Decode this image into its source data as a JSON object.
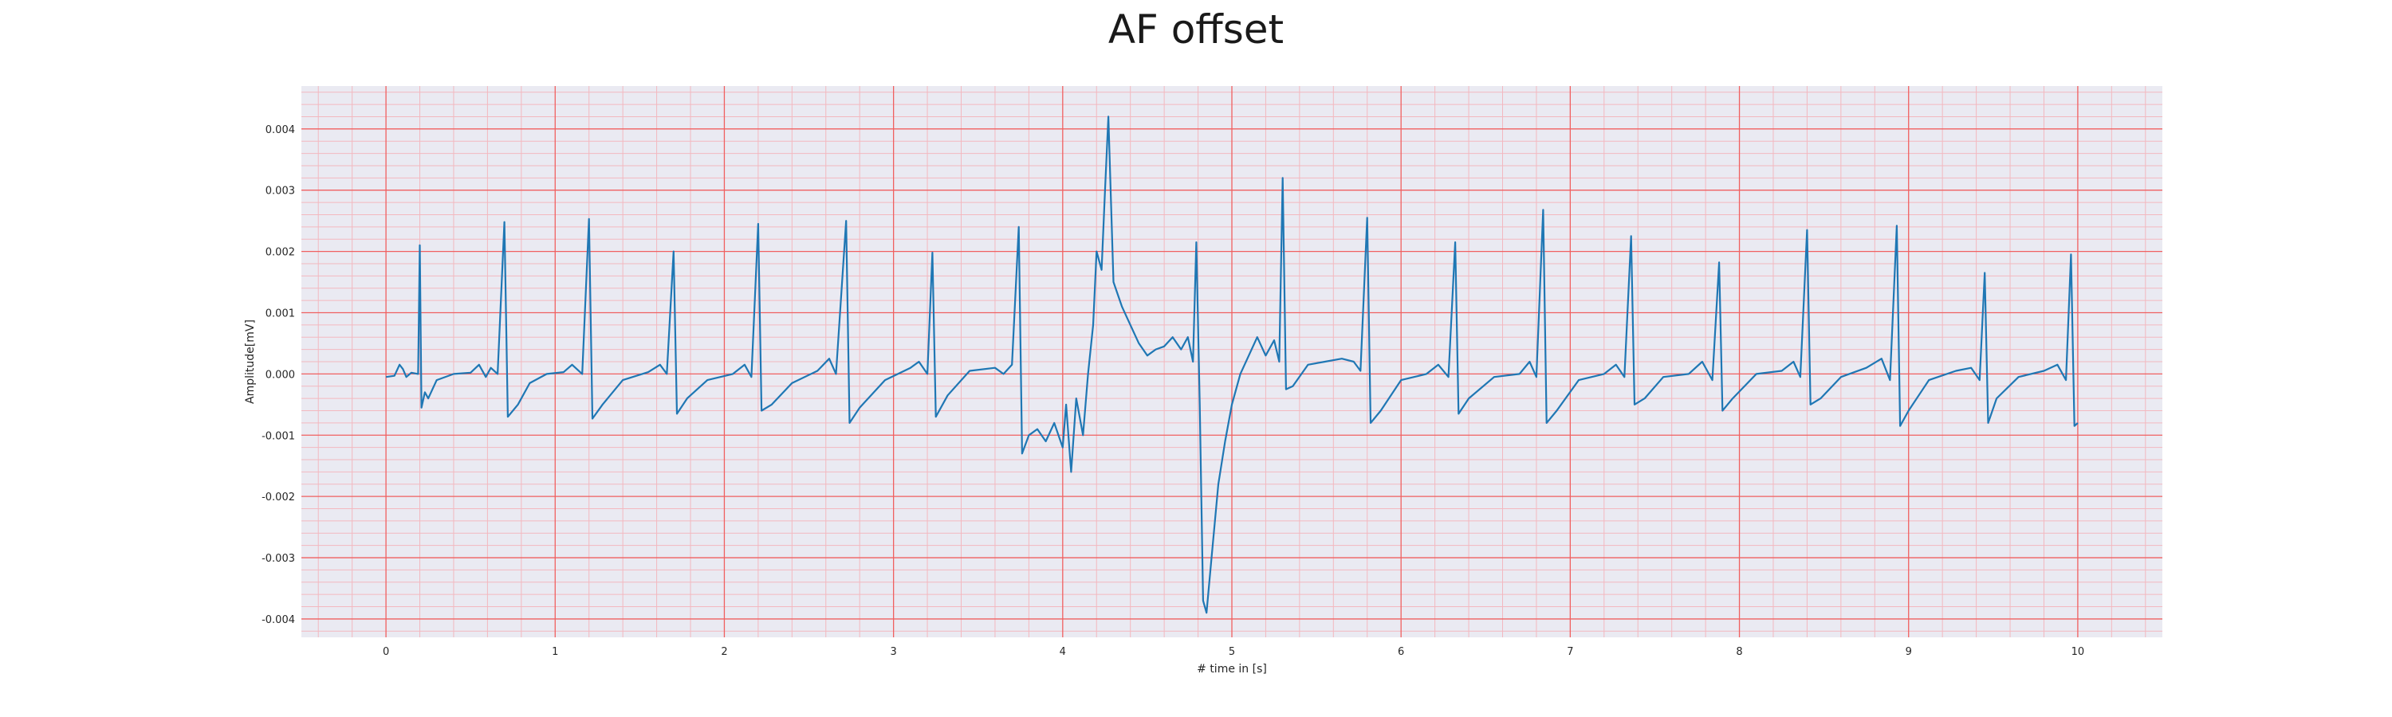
{
  "chart_data": {
    "type": "line",
    "title": "AF offset",
    "xlabel": "# time in [s]",
    "ylabel": "Amplitude[mV]",
    "xlim": [
      -0.5,
      10.5
    ],
    "ylim": [
      -0.0043,
      0.0047
    ],
    "xticks": [
      0,
      1,
      2,
      3,
      4,
      5,
      6,
      7,
      8,
      9,
      10
    ],
    "xtick_labels": [
      "0",
      "1",
      "2",
      "3",
      "4",
      "5",
      "6",
      "7",
      "8",
      "9",
      "10"
    ],
    "yticks": [
      -0.004,
      -0.003,
      -0.002,
      -0.001,
      0.0,
      0.001,
      0.002,
      0.003,
      0.004
    ],
    "ytick_labels": [
      "-0.004",
      "-0.003",
      "-0.002",
      "-0.001",
      "0.000",
      "0.001",
      "0.002",
      "0.003",
      "0.004"
    ],
    "grid": true,
    "minor_grid": true,
    "colors": {
      "line": "#1f77b4",
      "major_grid": "#f06060",
      "minor_grid": "#f3b8bf",
      "background": "#eaeaf2"
    },
    "series": [
      {
        "name": "",
        "beats": [
          {
            "t": 0.2,
            "r": 0.0021,
            "s": -0.00055
          },
          {
            "t": 0.7,
            "r": 0.00248,
            "s": -0.0007
          },
          {
            "t": 1.2,
            "r": 0.00253,
            "s": -0.00073
          },
          {
            "t": 1.7,
            "r": 0.002,
            "s": -0.00065
          },
          {
            "t": 2.2,
            "r": 0.00245,
            "s": -0.0006
          },
          {
            "t": 2.72,
            "r": 0.0025,
            "s": -0.0008
          },
          {
            "t": 3.23,
            "r": 0.00198,
            "s": -0.0007
          },
          {
            "t": 3.74,
            "r": 0.0024,
            "s": -0.0013
          },
          {
            "t": 4.27,
            "r": 0.0042,
            "s": 0.0015
          },
          {
            "t": 4.79,
            "r": 0.00215,
            "s": -0.0039
          },
          {
            "t": 5.3,
            "r": 0.0032,
            "s": -0.00025
          },
          {
            "t": 5.8,
            "r": 0.00255,
            "s": -0.0008
          },
          {
            "t": 6.32,
            "r": 0.00215,
            "s": -0.00065
          },
          {
            "t": 6.84,
            "r": 0.00268,
            "s": -0.0008
          },
          {
            "t": 7.36,
            "r": 0.00225,
            "s": -0.0005
          },
          {
            "t": 7.88,
            "r": 0.00182,
            "s": -0.0006
          },
          {
            "t": 8.4,
            "r": 0.00235,
            "s": -0.0005
          },
          {
            "t": 8.93,
            "r": 0.00242,
            "s": -0.00085
          },
          {
            "t": 9.45,
            "r": 0.00165,
            "s": -0.0008
          },
          {
            "t": 9.96,
            "r": 0.00195,
            "s": -0.00085
          }
        ],
        "x": [
          0.0,
          0.05,
          0.08,
          0.1,
          0.12,
          0.15,
          0.19,
          0.2,
          0.21,
          0.23,
          0.25,
          0.3,
          0.4,
          0.5,
          0.55,
          0.59,
          0.62,
          0.66,
          0.7,
          0.72,
          0.78,
          0.85,
          0.95,
          1.05,
          1.1,
          1.16,
          1.2,
          1.22,
          1.28,
          1.4,
          1.55,
          1.62,
          1.66,
          1.7,
          1.72,
          1.78,
          1.9,
          2.05,
          2.12,
          2.16,
          2.2,
          2.22,
          2.28,
          2.4,
          2.55,
          2.62,
          2.66,
          2.72,
          2.74,
          2.8,
          2.95,
          3.1,
          3.15,
          3.2,
          3.23,
          3.25,
          3.32,
          3.45,
          3.6,
          3.65,
          3.7,
          3.74,
          3.76,
          3.8,
          3.85,
          3.9,
          3.95,
          4.0,
          4.02,
          4.05,
          4.08,
          4.12,
          4.15,
          4.18,
          4.2,
          4.23,
          4.25,
          4.27,
          4.3,
          4.35,
          4.4,
          4.45,
          4.5,
          4.55,
          4.6,
          4.65,
          4.7,
          4.74,
          4.77,
          4.79,
          4.81,
          4.83,
          4.85,
          4.88,
          4.92,
          4.96,
          5.0,
          5.05,
          5.1,
          5.15,
          5.2,
          5.25,
          5.28,
          5.3,
          5.32,
          5.36,
          5.45,
          5.55,
          5.65,
          5.72,
          5.76,
          5.8,
          5.82,
          5.88,
          6.0,
          6.15,
          6.22,
          6.28,
          6.32,
          6.34,
          6.4,
          6.55,
          6.7,
          6.76,
          6.8,
          6.84,
          6.86,
          6.92,
          7.05,
          7.2,
          7.27,
          7.32,
          7.36,
          7.38,
          7.44,
          7.55,
          7.7,
          7.78,
          7.84,
          7.88,
          7.9,
          7.96,
          8.1,
          8.25,
          8.32,
          8.36,
          8.4,
          8.42,
          8.48,
          8.6,
          8.75,
          8.84,
          8.89,
          8.93,
          8.95,
          9.0,
          9.12,
          9.28,
          9.37,
          9.42,
          9.45,
          9.47,
          9.52,
          9.65,
          9.8,
          9.88,
          9.93,
          9.96,
          9.98,
          10.0
        ],
        "y": [
          -5e-05,
          -3e-05,
          0.00015,
          8e-05,
          -5e-05,
          2e-05,
          0.0,
          0.0021,
          -0.00055,
          -0.0003,
          -0.0004,
          -0.0001,
          0.0,
          2e-05,
          0.00015,
          -5e-05,
          0.0001,
          0.0,
          0.00248,
          -0.0007,
          -0.0005,
          -0.00015,
          0.0,
          3e-05,
          0.00015,
          0.0,
          0.00253,
          -0.00073,
          -0.0005,
          -0.0001,
          3e-05,
          0.00015,
          0.0,
          0.002,
          -0.00065,
          -0.0004,
          -0.0001,
          0.0,
          0.00015,
          -5e-05,
          0.00245,
          -0.0006,
          -0.0005,
          -0.00015,
          5e-05,
          0.00025,
          0.0,
          0.0025,
          -0.0008,
          -0.00055,
          -0.0001,
          0.0001,
          0.0002,
          0.0,
          0.00198,
          -0.0007,
          -0.00035,
          5e-05,
          0.0001,
          0.0,
          0.00015,
          0.0024,
          -0.0013,
          -0.001,
          -0.0009,
          -0.0011,
          -0.0008,
          -0.0012,
          -0.0005,
          -0.0016,
          -0.0004,
          -0.001,
          0.0,
          0.0008,
          0.002,
          0.0017,
          0.003,
          0.0042,
          0.0015,
          0.0011,
          0.0008,
          0.0005,
          0.0003,
          0.0004,
          0.00045,
          0.0006,
          0.0004,
          0.0006,
          0.0002,
          0.00215,
          -0.0005,
          -0.0037,
          -0.0039,
          -0.003,
          -0.0018,
          -0.0011,
          -0.0005,
          0.0,
          0.0003,
          0.0006,
          0.0003,
          0.00055,
          0.0002,
          0.0032,
          -0.00025,
          -0.0002,
          0.00015,
          0.0002,
          0.00025,
          0.0002,
          5e-05,
          0.00255,
          -0.0008,
          -0.0006,
          -0.0001,
          0.0,
          0.00015,
          -5e-05,
          0.00215,
          -0.00065,
          -0.0004,
          -5e-05,
          0.0,
          0.0002,
          -5e-05,
          0.00268,
          -0.0008,
          -0.0006,
          -0.0001,
          0.0,
          0.00015,
          -5e-05,
          0.00225,
          -0.0005,
          -0.0004,
          -5e-05,
          0.0,
          0.0002,
          -0.0001,
          0.00182,
          -0.0006,
          -0.0004,
          0.0,
          5e-05,
          0.0002,
          -5e-05,
          0.00235,
          -0.0005,
          -0.0004,
          -5e-05,
          0.0001,
          0.00025,
          -0.0001,
          0.00242,
          -0.00085,
          -0.0006,
          -0.0001,
          5e-05,
          0.0001,
          -0.0001,
          0.00165,
          -0.0008,
          -0.0004,
          -5e-05,
          5e-05,
          0.00015,
          -0.0001,
          0.00195,
          -0.00085,
          -0.0008
        ]
      }
    ]
  }
}
